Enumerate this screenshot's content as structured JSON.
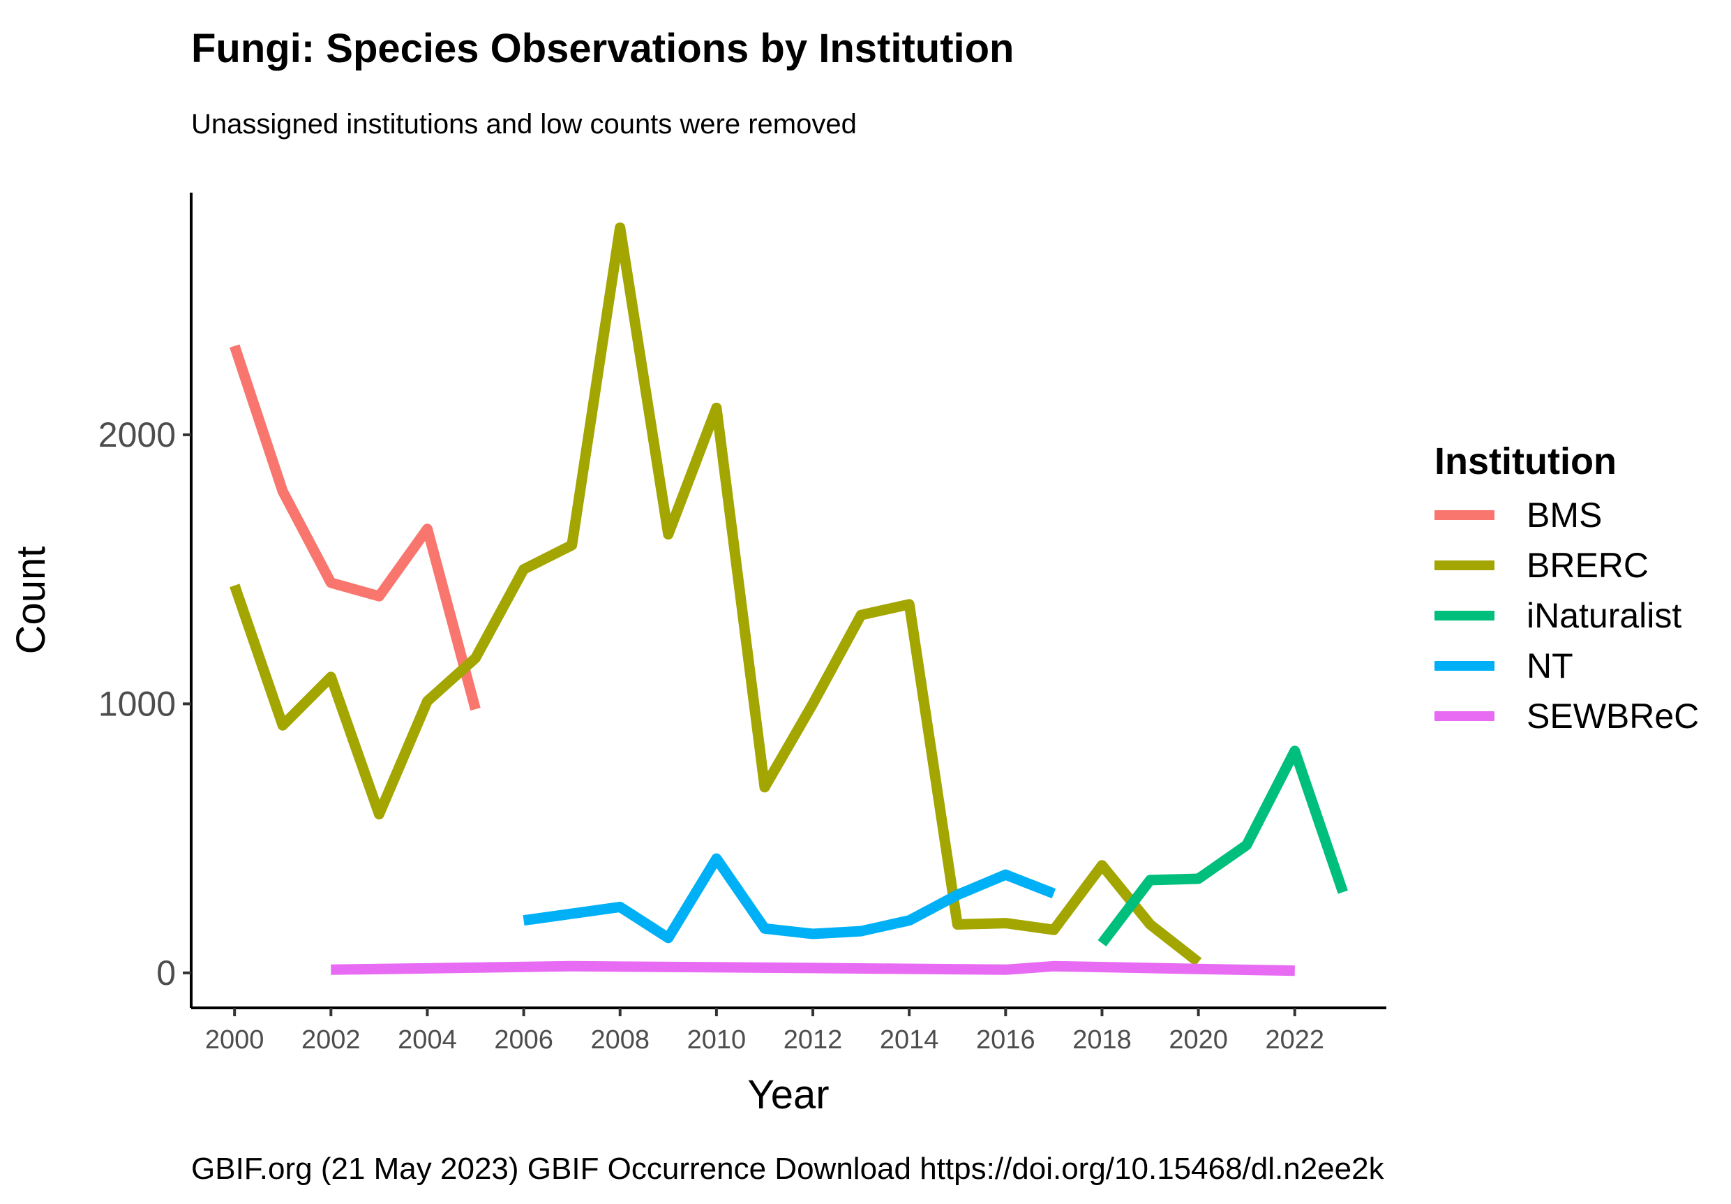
{
  "chart_data": {
    "type": "line",
    "title": "Fungi: Species Observations by Institution",
    "subtitle": "Unassigned institutions and low counts were removed",
    "caption": "GBIF.org (21 May 2023) GBIF Occurrence Download https://doi.org/10.15468/dl.n2ee2k",
    "xlabel": "Year",
    "ylabel": "Count",
    "xlim": [
      1999.1,
      2023.9
    ],
    "ylim": [
      -130,
      2900
    ],
    "x_ticks": [
      2000,
      2002,
      2004,
      2006,
      2008,
      2010,
      2012,
      2014,
      2016,
      2018,
      2020,
      2022
    ],
    "y_ticks": [
      0,
      1000,
      2000
    ],
    "grid": false,
    "legend_title": "Institution",
    "legend_position": "right",
    "series": [
      {
        "name": "BMS",
        "color": "#F8766D",
        "x": [
          2000,
          2001,
          2002,
          2003,
          2004,
          2005
        ],
        "y": [
          2330,
          1790,
          1450,
          1400,
          1650,
          980
        ]
      },
      {
        "name": "BRERC",
        "color": "#A3A500",
        "x": [
          2000,
          2001,
          2002,
          2003,
          2004,
          2005,
          2006,
          2007,
          2008,
          2009,
          2010,
          2011,
          2012,
          2013,
          2014,
          2015,
          2016,
          2017,
          2018,
          2019,
          2020
        ],
        "y": [
          1440,
          920,
          1100,
          590,
          1010,
          1170,
          1500,
          1590,
          2770,
          1630,
          2100,
          690,
          1000,
          1330,
          1370,
          180,
          185,
          160,
          400,
          180,
          40
        ]
      },
      {
        "name": "iNaturalist",
        "color": "#00BF7D",
        "x": [
          2018,
          2019,
          2020,
          2021,
          2022,
          2023
        ],
        "y": [
          110,
          345,
          350,
          475,
          825,
          300
        ]
      },
      {
        "name": "NT",
        "color": "#00B0F6",
        "x": [
          2006,
          2007,
          2008,
          2009,
          2010,
          2011,
          2012,
          2013,
          2014,
          2015,
          2016,
          2017
        ],
        "y": [
          195,
          220,
          245,
          130,
          425,
          165,
          145,
          155,
          195,
          290,
          365,
          295
        ]
      },
      {
        "name": "SEWBReC",
        "color": "#E76BF3",
        "x": [
          2002,
          2007,
          2012,
          2016,
          2017,
          2022
        ],
        "y": [
          12,
          25,
          18,
          12,
          25,
          8
        ]
      }
    ]
  }
}
